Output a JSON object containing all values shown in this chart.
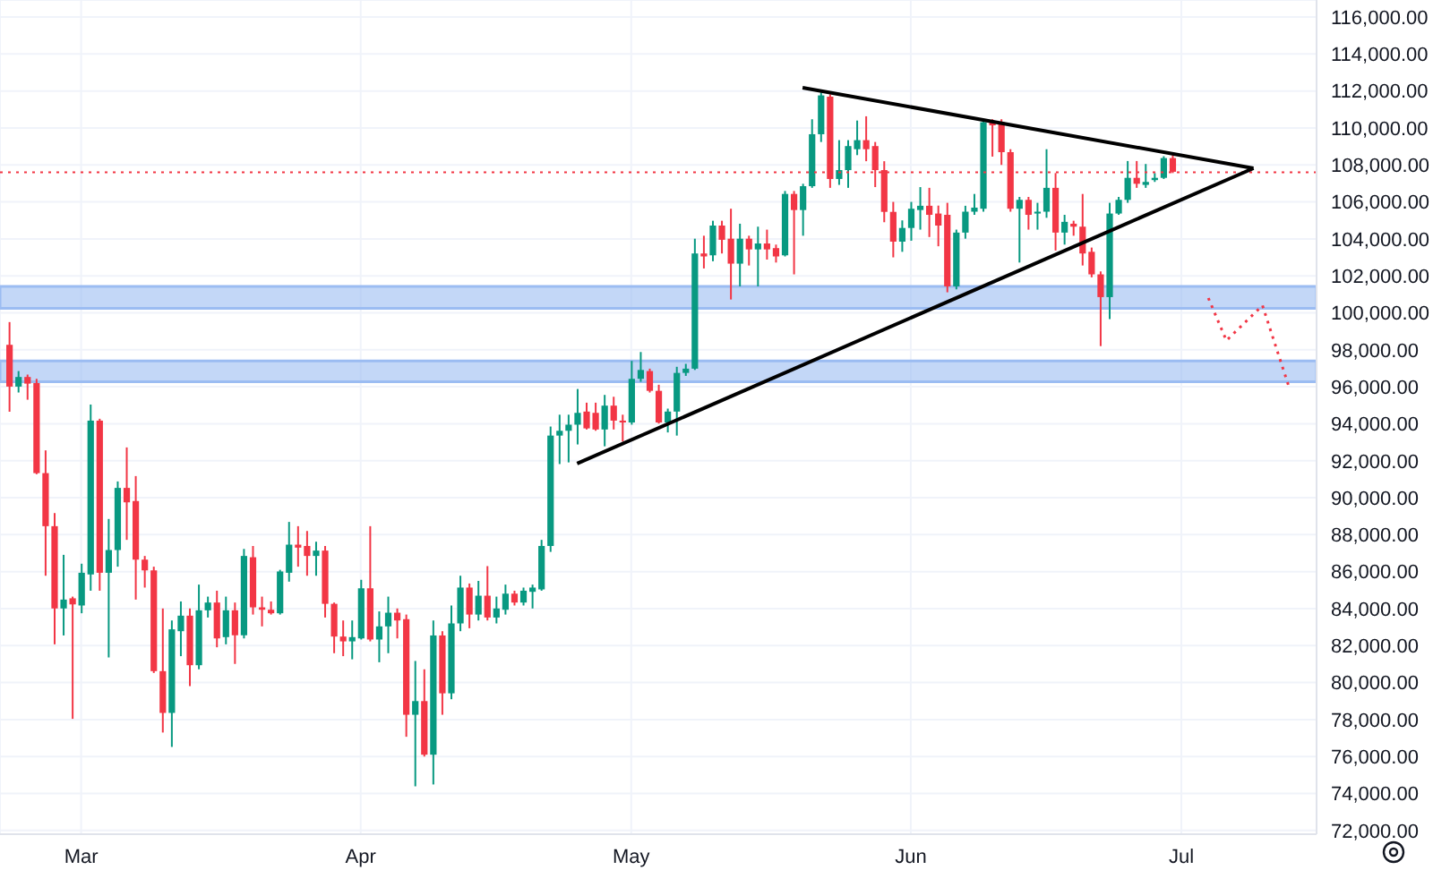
{
  "chart_data": {
    "type": "candlestick",
    "x": [
      "--02-21",
      "--02-22",
      "--02-23",
      "--02-24",
      "--02-25",
      "--02-26",
      "--02-27",
      "--02-28",
      "--03-01",
      "--03-02",
      "--03-03",
      "--03-04",
      "--03-05",
      "--03-06",
      "--03-07",
      "--03-08",
      "--03-09",
      "--03-10",
      "--03-11",
      "--03-12",
      "--03-13",
      "--03-14",
      "--03-15",
      "--03-16",
      "--03-17",
      "--03-18",
      "--03-19",
      "--03-20",
      "--03-21",
      "--03-22",
      "--03-23",
      "--03-24",
      "--03-25",
      "--03-26",
      "--03-27",
      "--03-28",
      "--03-29",
      "--03-30",
      "--03-31",
      "--04-01",
      "--04-02",
      "--04-03",
      "--04-04",
      "--04-05",
      "--04-06",
      "--04-07",
      "--04-08",
      "--04-09",
      "--04-10",
      "--04-11",
      "--04-12",
      "--04-13",
      "--04-14",
      "--04-15",
      "--04-16",
      "--04-17",
      "--04-18",
      "--04-19",
      "--04-20",
      "--04-21",
      "--04-22",
      "--04-23",
      "--04-24",
      "--04-25",
      "--04-26",
      "--04-27",
      "--04-28",
      "--04-29",
      "--04-30",
      "--05-01",
      "--05-02",
      "--05-03",
      "--05-04",
      "--05-05",
      "--05-06",
      "--05-07",
      "--05-08",
      "--05-09",
      "--05-10",
      "--05-11",
      "--05-12",
      "--05-13",
      "--05-14",
      "--05-15",
      "--05-16",
      "--05-17",
      "--05-18",
      "--05-19",
      "--05-20",
      "--05-21",
      "--05-22",
      "--05-23",
      "--05-24",
      "--05-25",
      "--05-26",
      "--05-27",
      "--05-28",
      "--05-29",
      "--05-30",
      "--05-31",
      "--06-01",
      "--06-02",
      "--06-03",
      "--06-04",
      "--06-05",
      "--06-06",
      "--06-07",
      "--06-08",
      "--06-09",
      "--06-10",
      "--06-11",
      "--06-12",
      "--06-13",
      "--06-14",
      "--06-15",
      "--06-16",
      "--06-17",
      "--06-18",
      "--06-19",
      "--06-20",
      "--06-21",
      "--06-22",
      "--06-23",
      "--06-24",
      "--06-25",
      "--06-26",
      "--06-27",
      "--06-28",
      "--06-29",
      "--06-30"
    ],
    "ohlc": [
      [
        98270,
        99500,
        94650,
        96010
      ],
      [
        96010,
        96850,
        95690,
        96530
      ],
      [
        96530,
        96660,
        95300,
        96170
      ],
      [
        96200,
        96430,
        91270,
        91330
      ],
      [
        91330,
        92560,
        85780,
        88460
      ],
      [
        88460,
        89170,
        82070,
        84010
      ],
      [
        84010,
        86910,
        82550,
        84490
      ],
      [
        84560,
        84650,
        78040,
        84230
      ],
      [
        84170,
        86430,
        83750,
        85940
      ],
      [
        85850,
        95040,
        84970,
        94170
      ],
      [
        94170,
        94270,
        84970,
        85940
      ],
      [
        85940,
        88850,
        81360,
        87170
      ],
      [
        87170,
        90880,
        86270,
        90530
      ],
      [
        90530,
        92720,
        87720,
        89750
      ],
      [
        89820,
        91170,
        84490,
        86650
      ],
      [
        86650,
        86850,
        85140,
        86070
      ],
      [
        86070,
        86270,
        80520,
        80620
      ],
      [
        80620,
        84010,
        77300,
        78360
      ],
      [
        78360,
        83360,
        76520,
        82880
      ],
      [
        82780,
        84390,
        81430,
        83620
      ],
      [
        83620,
        84010,
        79810,
        80940
      ],
      [
        80940,
        85300,
        80720,
        83910
      ],
      [
        83910,
        84650,
        83520,
        84330
      ],
      [
        84330,
        84970,
        81910,
        82390
      ],
      [
        82460,
        84650,
        82070,
        83910
      ],
      [
        83910,
        84330,
        81010,
        82560
      ],
      [
        82560,
        87230,
        82390,
        86850
      ],
      [
        86780,
        87390,
        83680,
        84070
      ],
      [
        84070,
        84650,
        83040,
        83940
      ],
      [
        83940,
        84390,
        83680,
        83750
      ],
      [
        83750,
        86100,
        83680,
        86010
      ],
      [
        85940,
        88690,
        85460,
        87460
      ],
      [
        87460,
        88460,
        86270,
        87300
      ],
      [
        87390,
        88200,
        85780,
        86850
      ],
      [
        86850,
        87620,
        85780,
        87140
      ],
      [
        87140,
        87390,
        83520,
        84260
      ],
      [
        84260,
        84330,
        81590,
        82490
      ],
      [
        82490,
        83360,
        81430,
        82230
      ],
      [
        82230,
        83360,
        81260,
        82460
      ],
      [
        82390,
        85560,
        82330,
        85100
      ],
      [
        85100,
        88460,
        82230,
        82330
      ],
      [
        82330,
        83850,
        81100,
        83040
      ],
      [
        83040,
        84650,
        81590,
        83780
      ],
      [
        83780,
        84010,
        82390,
        83360
      ],
      [
        83430,
        83680,
        77070,
        78260
      ],
      [
        78260,
        81170,
        74390,
        79000
      ],
      [
        79000,
        80720,
        76000,
        76100
      ],
      [
        76100,
        83360,
        74490,
        82550
      ],
      [
        82550,
        82780,
        78260,
        79420
      ],
      [
        79420,
        84170,
        79100,
        83200
      ],
      [
        83200,
        85780,
        82780,
        85140
      ],
      [
        85140,
        85360,
        82940,
        83680
      ],
      [
        83680,
        85500,
        83360,
        84700
      ],
      [
        84700,
        86300,
        83360,
        83520
      ],
      [
        83520,
        84650,
        83200,
        84010
      ],
      [
        83940,
        85300,
        83680,
        84810
      ],
      [
        84810,
        84970,
        84170,
        84330
      ],
      [
        84330,
        85140,
        84170,
        84970
      ],
      [
        84910,
        85300,
        84010,
        85140
      ],
      [
        85040,
        87720,
        84970,
        87390
      ],
      [
        87390,
        93850,
        87070,
        93360
      ],
      [
        93360,
        94490,
        91820,
        93620
      ],
      [
        93620,
        94490,
        91910,
        93950
      ],
      [
        93950,
        95880,
        92880,
        94590
      ],
      [
        94660,
        95140,
        93690,
        93750
      ],
      [
        94590,
        95140,
        93620,
        93690
      ],
      [
        93690,
        95560,
        92780,
        94980
      ],
      [
        94980,
        95460,
        93690,
        94170
      ],
      [
        94170,
        94490,
        93040,
        94070
      ],
      [
        94070,
        97400,
        93950,
        96430
      ],
      [
        96430,
        97880,
        96270,
        96910
      ],
      [
        96850,
        96980,
        95690,
        95780
      ],
      [
        95780,
        96110,
        94010,
        94070
      ],
      [
        94070,
        94820,
        93530,
        94660
      ],
      [
        94660,
        97080,
        93360,
        96750
      ],
      [
        96750,
        97240,
        96590,
        96980
      ],
      [
        96980,
        104010,
        96910,
        103210
      ],
      [
        103210,
        104170,
        102400,
        103050
      ],
      [
        103110,
        104980,
        102790,
        104720
      ],
      [
        104720,
        104980,
        103210,
        103950
      ],
      [
        104010,
        105630,
        100720,
        102660
      ],
      [
        102660,
        104820,
        101430,
        104010
      ],
      [
        104010,
        104170,
        102560,
        103430
      ],
      [
        103430,
        104660,
        101430,
        103750
      ],
      [
        103750,
        104500,
        102880,
        103430
      ],
      [
        103500,
        103690,
        102720,
        103050
      ],
      [
        103110,
        106590,
        103050,
        106430
      ],
      [
        106430,
        106590,
        102080,
        105560
      ],
      [
        105560,
        106980,
        104170,
        106850
      ],
      [
        106850,
        110470,
        106760,
        109660
      ],
      [
        109660,
        111920,
        109240,
        111760
      ],
      [
        111690,
        111820,
        106760,
        107240
      ],
      [
        107240,
        109340,
        106920,
        107720
      ],
      [
        107720,
        109340,
        106760,
        109020
      ],
      [
        108850,
        110400,
        108530,
        109340
      ],
      [
        109340,
        110630,
        108200,
        108850
      ],
      [
        109020,
        109240,
        106800,
        107720
      ],
      [
        107720,
        108200,
        104900,
        105460
      ],
      [
        105460,
        106000,
        103000,
        103850
      ],
      [
        103850,
        105000,
        103300,
        104590
      ],
      [
        104590,
        106000,
        103900,
        105630
      ],
      [
        105560,
        106800,
        104500,
        105790
      ],
      [
        105790,
        106760,
        104100,
        105300
      ],
      [
        105370,
        105800,
        103600,
        104720
      ],
      [
        105300,
        105950,
        101110,
        101430
      ],
      [
        101430,
        104500,
        101270,
        104340
      ],
      [
        104340,
        105790,
        104010,
        105470
      ],
      [
        105470,
        106430,
        105300,
        105690
      ],
      [
        105630,
        110400,
        105470,
        110310
      ],
      [
        110310,
        110470,
        108450,
        110140
      ],
      [
        110310,
        110470,
        108000,
        108690
      ],
      [
        108690,
        108850,
        105470,
        105630
      ],
      [
        105630,
        106270,
        102720,
        106110
      ],
      [
        106110,
        106270,
        104500,
        105300
      ],
      [
        105370,
        105950,
        104500,
        105470
      ],
      [
        105470,
        108850,
        105140,
        106760
      ],
      [
        106760,
        107560,
        103370,
        104340
      ],
      [
        104340,
        105300,
        103690,
        104920
      ],
      [
        104820,
        104980,
        104170,
        104660
      ],
      [
        104660,
        106430,
        102560,
        103210
      ],
      [
        103300,
        103530,
        101920,
        102080
      ],
      [
        102080,
        102240,
        98200,
        100850
      ],
      [
        100850,
        105950,
        99660,
        105370
      ],
      [
        105370,
        106270,
        105300,
        106110
      ],
      [
        106110,
        108210,
        105950,
        107300
      ],
      [
        107300,
        108210,
        106760,
        106980
      ],
      [
        106920,
        108050,
        106760,
        107080
      ],
      [
        107180,
        107560,
        107080,
        107300
      ],
      [
        107300,
        108470,
        107240,
        108370
      ],
      [
        108370,
        108530,
        107560,
        107630
      ]
    ],
    "colors": [
      "#f23645",
      "#089981",
      "#f23645",
      "#f23645",
      "#f23645",
      "#f23645",
      "#089981",
      "#f23645",
      "#089981",
      "#089981",
      "#f23645",
      "#089981",
      "#089981",
      "#f23645",
      "#f23645",
      "#f23645",
      "#f23645",
      "#f23645",
      "#089981",
      "#089981",
      "#f23645",
      "#089981",
      "#089981",
      "#f23645",
      "#089981",
      "#f23645",
      "#089981",
      "#f23645",
      "#f23645",
      "#f23645",
      "#089981",
      "#089981",
      "#f23645",
      "#f23645",
      "#089981",
      "#f23645",
      "#f23645",
      "#f23645",
      "#089981",
      "#089981",
      "#f23645",
      "#089981",
      "#089981",
      "#f23645",
      "#f23645",
      "#089981",
      "#f23645",
      "#089981",
      "#f23645",
      "#089981",
      "#089981",
      "#f23645",
      "#089981",
      "#f23645",
      "#089981",
      "#089981",
      "#f23645",
      "#089981",
      "#089981",
      "#089981",
      "#089981",
      "#089981",
      "#089981",
      "#089981",
      "#f23645",
      "#f23645",
      "#089981",
      "#f23645",
      "#f23645",
      "#089981",
      "#089981",
      "#f23645",
      "#f23645",
      "#089981",
      "#089981",
      "#089981",
      "#089981",
      "#f23645",
      "#089981",
      "#f23645",
      "#f23645",
      "#089981",
      "#f23645",
      "#089981",
      "#f23645",
      "#f23645",
      "#089981",
      "#f23645",
      "#089981",
      "#089981",
      "#089981",
      "#f23645",
      "#089981",
      "#089981",
      "#089981",
      "#f23645",
      "#f23645",
      "#f23645",
      "#f23645",
      "#089981",
      "#089981",
      "#089981",
      "#f23645",
      "#f23645",
      "#f23645",
      "#089981",
      "#089981",
      "#089981",
      "#089981",
      "#f23645",
      "#f23645",
      "#f23645",
      "#089981",
      "#f23645",
      "#089981",
      "#089981",
      "#f23645",
      "#089981",
      "#f23645",
      "#f23645",
      "#f23645",
      "#f23645",
      "#089981",
      "#089981",
      "#089981",
      "#f23645",
      "#089981",
      "#089981",
      "#089981",
      "#f23645"
    ],
    "series": [
      {
        "type": "line",
        "x": [
          "--05-20",
          "--07-09"
        ],
        "values": [
          112180,
          107820
        ],
        "color": "#000000"
      },
      {
        "type": "line",
        "x": [
          "--04-25",
          "--07-09"
        ],
        "values": [
          91850,
          107820
        ],
        "color": "#000000"
      },
      {
        "type": "line",
        "x": [
          "--07-04",
          "--07-06",
          "--07-10",
          "--07-13"
        ],
        "values": [
          100800,
          98500,
          100400,
          95900
        ],
        "color": "#f23645",
        "line_style": "dotted"
      }
    ],
    "ref_lines": [
      {
        "axis": "y",
        "value": 107600,
        "color": "#f23645",
        "line_style": "dotted"
      }
    ],
    "bands": [
      {
        "axis": "y",
        "from": 100240,
        "to": 101430,
        "color": "#9bbcf2"
      },
      {
        "axis": "y",
        "from": 96270,
        "to": 97400,
        "color": "#9bbcf2"
      }
    ],
    "xlim": [
      "--02-20",
      "--07-16"
    ],
    "xticks": [
      {
        "value": "--03-01",
        "label": "Mar"
      },
      {
        "value": "--04-01",
        "label": "Apr"
      },
      {
        "value": "--05-01",
        "label": "May"
      },
      {
        "value": "--06-01",
        "label": "Jun"
      },
      {
        "value": "--07-01",
        "label": "Jul"
      }
    ],
    "ylim": [
      71800,
      116920
    ],
    "yticks": [
      {
        "value": 72000,
        "label": "72,000.00"
      },
      {
        "value": 74000,
        "label": "74,000.00"
      },
      {
        "value": 76000,
        "label": "76,000.00"
      },
      {
        "value": 78000,
        "label": "78,000.00"
      },
      {
        "value": 80000,
        "label": "80,000.00"
      },
      {
        "value": 82000,
        "label": "82,000.00"
      },
      {
        "value": 84000,
        "label": "84,000.00"
      },
      {
        "value": 86000,
        "label": "86,000.00"
      },
      {
        "value": 88000,
        "label": "88,000.00"
      },
      {
        "value": 90000,
        "label": "90,000.00"
      },
      {
        "value": 92000,
        "label": "92,000.00"
      },
      {
        "value": 94000,
        "label": "94,000.00"
      },
      {
        "value": 96000,
        "label": "96,000.00"
      },
      {
        "value": 98000,
        "label": "98,000.00"
      },
      {
        "value": 100000,
        "label": "100,000.00"
      },
      {
        "value": 102000,
        "label": "102,000.00"
      },
      {
        "value": 104000,
        "label": "104,000.00"
      },
      {
        "value": 106000,
        "label": "106,000.00"
      },
      {
        "value": 108000,
        "label": "108,000.00"
      },
      {
        "value": 110000,
        "label": "110,000.00"
      },
      {
        "value": 112000,
        "label": "112,000.00"
      },
      {
        "value": 114000,
        "label": "114,000.00"
      },
      {
        "value": 116000,
        "label": "116,000.00"
      }
    ],
    "grid": true
  }
}
